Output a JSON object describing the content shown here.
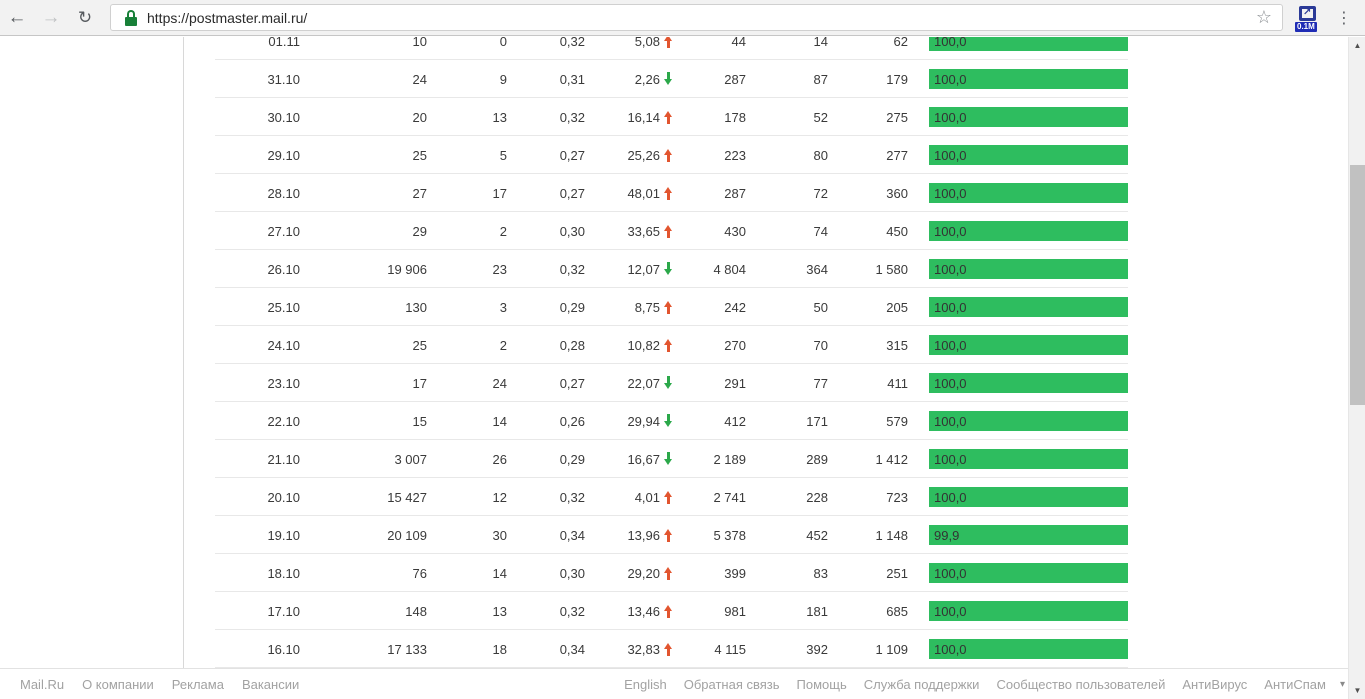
{
  "browser": {
    "url": "https://postmaster.mail.ru/",
    "extension_badge": "0.1M"
  },
  "colors": {
    "bar_green": "#2ebd5f",
    "trend_up": "#e2552f",
    "trend_down": "#2ba84a"
  },
  "table": {
    "rows": [
      {
        "date": "01.11",
        "c1": "10",
        "c2": "0",
        "c3": "0,32",
        "delta": "5,08",
        "trend": "up",
        "c4": "44",
        "c5": "14",
        "c6": "62",
        "bar_label": "100,0",
        "bar_pct": 100
      },
      {
        "date": "31.10",
        "c1": "24",
        "c2": "9",
        "c3": "0,31",
        "delta": "2,26",
        "trend": "down",
        "c4": "287",
        "c5": "87",
        "c6": "179",
        "bar_label": "100,0",
        "bar_pct": 100
      },
      {
        "date": "30.10",
        "c1": "20",
        "c2": "13",
        "c3": "0,32",
        "delta": "16,14",
        "trend": "up",
        "c4": "178",
        "c5": "52",
        "c6": "275",
        "bar_label": "100,0",
        "bar_pct": 100
      },
      {
        "date": "29.10",
        "c1": "25",
        "c2": "5",
        "c3": "0,27",
        "delta": "25,26",
        "trend": "up",
        "c4": "223",
        "c5": "80",
        "c6": "277",
        "bar_label": "100,0",
        "bar_pct": 100
      },
      {
        "date": "28.10",
        "c1": "27",
        "c2": "17",
        "c3": "0,27",
        "delta": "48,01",
        "trend": "up",
        "c4": "287",
        "c5": "72",
        "c6": "360",
        "bar_label": "100,0",
        "bar_pct": 100
      },
      {
        "date": "27.10",
        "c1": "29",
        "c2": "2",
        "c3": "0,30",
        "delta": "33,65",
        "trend": "up",
        "c4": "430",
        "c5": "74",
        "c6": "450",
        "bar_label": "100,0",
        "bar_pct": 100
      },
      {
        "date": "26.10",
        "c1": "19 906",
        "c2": "23",
        "c3": "0,32",
        "delta": "12,07",
        "trend": "down",
        "c4": "4 804",
        "c5": "364",
        "c6": "1 580",
        "bar_label": "100,0",
        "bar_pct": 100
      },
      {
        "date": "25.10",
        "c1": "130",
        "c2": "3",
        "c3": "0,29",
        "delta": "8,75",
        "trend": "up",
        "c4": "242",
        "c5": "50",
        "c6": "205",
        "bar_label": "100,0",
        "bar_pct": 100
      },
      {
        "date": "24.10",
        "c1": "25",
        "c2": "2",
        "c3": "0,28",
        "delta": "10,82",
        "trend": "up",
        "c4": "270",
        "c5": "70",
        "c6": "315",
        "bar_label": "100,0",
        "bar_pct": 100
      },
      {
        "date": "23.10",
        "c1": "17",
        "c2": "24",
        "c3": "0,27",
        "delta": "22,07",
        "trend": "down",
        "c4": "291",
        "c5": "77",
        "c6": "411",
        "bar_label": "100,0",
        "bar_pct": 100
      },
      {
        "date": "22.10",
        "c1": "15",
        "c2": "14",
        "c3": "0,26",
        "delta": "29,94",
        "trend": "down",
        "c4": "412",
        "c5": "171",
        "c6": "579",
        "bar_label": "100,0",
        "bar_pct": 100
      },
      {
        "date": "21.10",
        "c1": "3 007",
        "c2": "26",
        "c3": "0,29",
        "delta": "16,67",
        "trend": "down",
        "c4": "2 189",
        "c5": "289",
        "c6": "1 412",
        "bar_label": "100,0",
        "bar_pct": 100
      },
      {
        "date": "20.10",
        "c1": "15 427",
        "c2": "12",
        "c3": "0,32",
        "delta": "4,01",
        "trend": "up",
        "c4": "2 741",
        "c5": "228",
        "c6": "723",
        "bar_label": "100,0",
        "bar_pct": 100
      },
      {
        "date": "19.10",
        "c1": "20 109",
        "c2": "30",
        "c3": "0,34",
        "delta": "13,96",
        "trend": "up",
        "c4": "5 378",
        "c5": "452",
        "c6": "1 148",
        "bar_label": "99,9",
        "bar_pct": 99.9
      },
      {
        "date": "18.10",
        "c1": "76",
        "c2": "14",
        "c3": "0,30",
        "delta": "29,20",
        "trend": "up",
        "c4": "399",
        "c5": "83",
        "c6": "251",
        "bar_label": "100,0",
        "bar_pct": 100
      },
      {
        "date": "17.10",
        "c1": "148",
        "c2": "13",
        "c3": "0,32",
        "delta": "13,46",
        "trend": "up",
        "c4": "981",
        "c5": "181",
        "c6": "685",
        "bar_label": "100,0",
        "bar_pct": 100
      },
      {
        "date": "16.10",
        "c1": "17 133",
        "c2": "18",
        "c3": "0,34",
        "delta": "32,83",
        "trend": "up",
        "c4": "4 115",
        "c5": "392",
        "c6": "1 109",
        "bar_label": "100,0",
        "bar_pct": 100
      }
    ]
  },
  "footer": {
    "left_links": [
      "Mail.Ru",
      "О компании",
      "Реклама",
      "Вакансии"
    ],
    "right_links": [
      "English",
      "Обратная связь",
      "Помощь",
      "Служба поддержки",
      "Сообщество пользователей",
      "АнтиВирус",
      "АнтиСпам"
    ]
  }
}
